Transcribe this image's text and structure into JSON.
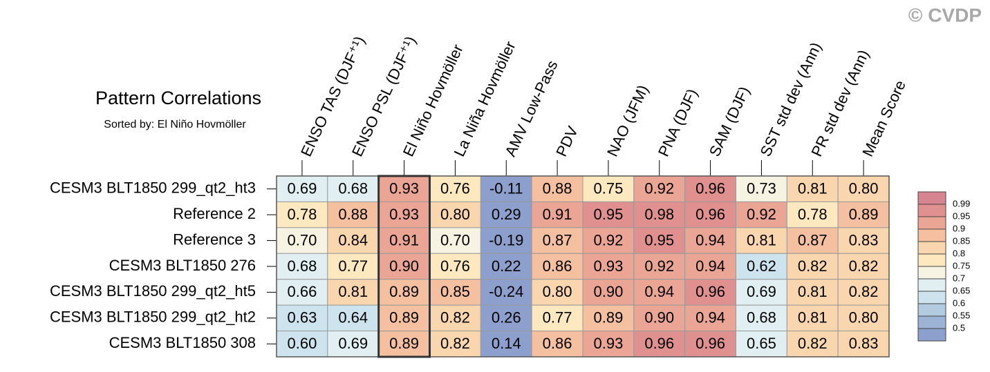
{
  "chart_data": {
    "type": "heatmap",
    "title": "Pattern Correlations",
    "subtitle": "Sorted by: El Niño Hovmöller",
    "watermark": "© CVDP",
    "columns": [
      "ENSO TAS (DJF⁺¹)",
      "ENSO PSL (DJF⁺¹)",
      "El Niño Hovmöller",
      "La Niña Hovmöller",
      "AMV Low-Pass",
      "PDV",
      "NAO (JFM)",
      "PNA (DJF)",
      "SAM (DJF)",
      "SST std dev (Ann)",
      "PR std dev (Ann)",
      "Mean Score"
    ],
    "rows": [
      "CESM3 BLT1850 299_qt2_ht3",
      "Reference 2",
      "Reference 3",
      "CESM3 BLT1850 276",
      "CESM3 BLT1850 299_qt2_ht5",
      "CESM3 BLT1850 299_qt2_ht2",
      "CESM3 BLT1850 308"
    ],
    "values": [
      [
        0.69,
        0.68,
        0.93,
        0.76,
        -0.11,
        0.88,
        0.75,
        0.92,
        0.96,
        0.73,
        0.81,
        0.8
      ],
      [
        0.78,
        0.88,
        0.93,
        0.8,
        0.29,
        0.91,
        0.95,
        0.98,
        0.96,
        0.92,
        0.78,
        0.89
      ],
      [
        0.7,
        0.84,
        0.91,
        0.7,
        -0.19,
        0.87,
        0.92,
        0.95,
        0.94,
        0.81,
        0.87,
        0.83
      ],
      [
        0.68,
        0.77,
        0.9,
        0.76,
        0.22,
        0.86,
        0.93,
        0.92,
        0.94,
        0.62,
        0.82,
        0.82
      ],
      [
        0.66,
        0.81,
        0.89,
        0.85,
        -0.24,
        0.8,
        0.9,
        0.94,
        0.96,
        0.69,
        0.81,
        0.82
      ],
      [
        0.63,
        0.64,
        0.89,
        0.82,
        0.26,
        0.77,
        0.89,
        0.9,
        0.94,
        0.68,
        0.81,
        0.8
      ],
      [
        0.6,
        0.69,
        0.89,
        0.82,
        0.14,
        0.86,
        0.93,
        0.96,
        0.96,
        0.65,
        0.82,
        0.83
      ]
    ],
    "value_labels": [
      [
        "0.69",
        "0.68",
        "0.93",
        "0.76",
        "-0.11",
        "0.88",
        "0.75",
        "0.92",
        "0.96",
        "0.73",
        "0.81",
        "0.80"
      ],
      [
        "0.78",
        "0.88",
        "0.93",
        "0.80",
        "0.29",
        "0.91",
        "0.95",
        "0.98",
        "0.96",
        "0.92",
        "0.78",
        "0.89"
      ],
      [
        "0.70",
        "0.84",
        "0.91",
        "0.70",
        "-0.19",
        "0.87",
        "0.92",
        "0.95",
        "0.94",
        "0.81",
        "0.87",
        "0.83"
      ],
      [
        "0.68",
        "0.77",
        "0.90",
        "0.76",
        "0.22",
        "0.86",
        "0.93",
        "0.92",
        "0.94",
        "0.62",
        "0.82",
        "0.82"
      ],
      [
        "0.66",
        "0.81",
        "0.89",
        "0.85",
        "-0.24",
        "0.80",
        "0.90",
        "0.94",
        "0.96",
        "0.69",
        "0.81",
        "0.82"
      ],
      [
        "0.63",
        "0.64",
        "0.89",
        "0.82",
        "0.26",
        "0.77",
        "0.89",
        "0.90",
        "0.94",
        "0.68",
        "0.81",
        "0.80"
      ],
      [
        "0.60",
        "0.69",
        "0.89",
        "0.82",
        "0.14",
        "0.86",
        "0.93",
        "0.96",
        "0.96",
        "0.65",
        "0.82",
        "0.83"
      ]
    ],
    "highlight_column": 2,
    "colorbar": {
      "levels": [
        0.99,
        0.95,
        0.9,
        0.85,
        0.8,
        0.75,
        0.7,
        0.65,
        0.6,
        0.55,
        0.5
      ],
      "colors": [
        "#d6848f",
        "#e0918f",
        "#eba595",
        "#f5c0a0",
        "#fad6ae",
        "#fde8c0",
        "#f6f3e3",
        "#e2eff2",
        "#cde3ed",
        "#b3cbe0",
        "#9db3d6",
        "#8d9fcc"
      ]
    }
  }
}
